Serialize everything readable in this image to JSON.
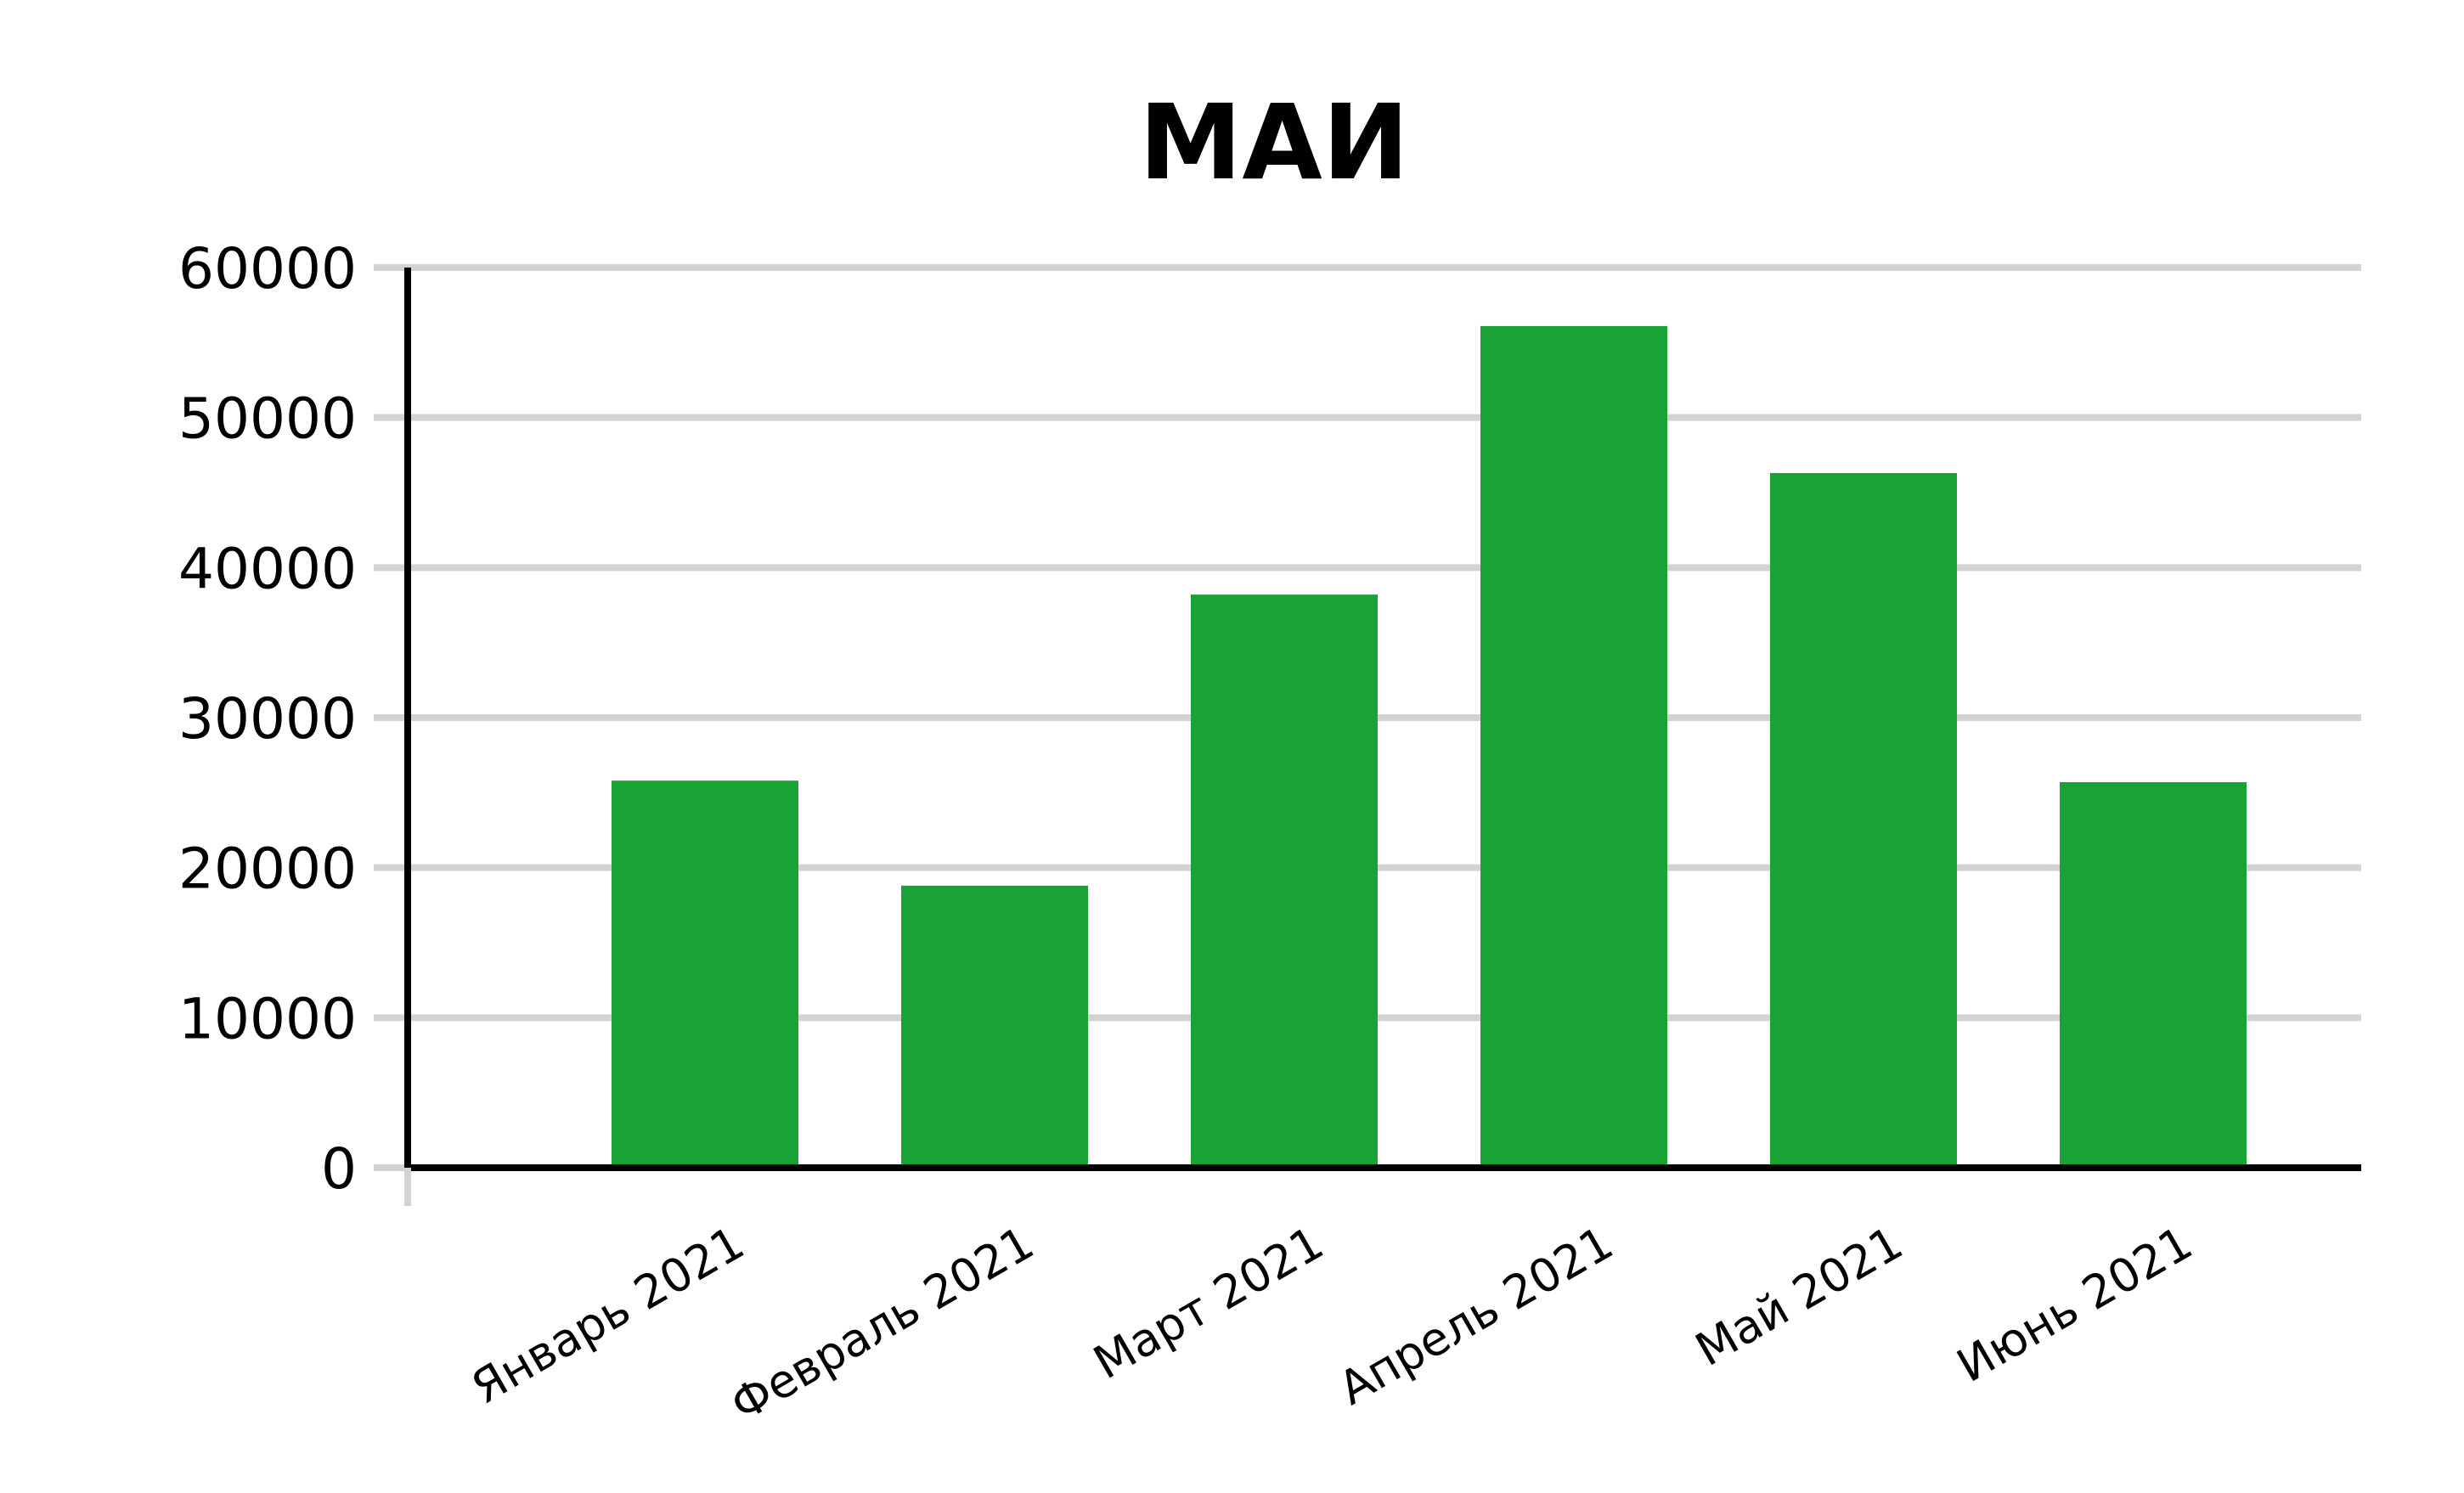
{
  "chart_data": {
    "type": "bar",
    "title": "МАИ",
    "xlabel": "",
    "ylabel": "",
    "categories": [
      "Январь 2021",
      "Февраль 2021",
      "Март 2021",
      "Апрель 2021",
      "Май 2021",
      "Июнь 2021"
    ],
    "values": [
      25800,
      18800,
      38200,
      56100,
      46300,
      25700
    ],
    "ylim": [
      0,
      60000
    ],
    "yticks": [
      0,
      10000,
      20000,
      30000,
      40000,
      50000,
      60000
    ],
    "grid": true,
    "legend": "none",
    "colors": {
      "bar": "#1ba237",
      "grid": "#d3d3d3",
      "axis": "#000000"
    }
  }
}
